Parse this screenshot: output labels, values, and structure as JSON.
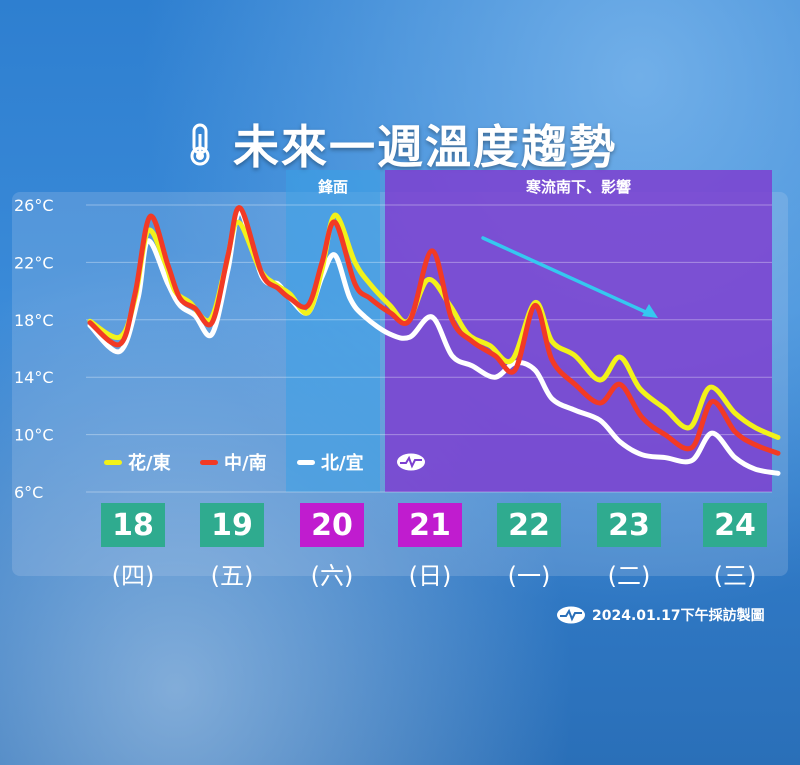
{
  "title": "未來一週溫度趨勢",
  "icons": {
    "title": "thermometer-icon",
    "source": "agency-logo-icon",
    "legend": "agency-logo-icon"
  },
  "colors": {
    "front_band": "#3ba0e6",
    "cold_band": "#7c3fd0",
    "weekend_box": "#c01ccf",
    "weekday_box": "#2fab8f",
    "arrow": "#35c8f0"
  },
  "chart_data": {
    "type": "line",
    "y_unit": "°C",
    "ylim": [
      6,
      26
    ],
    "yticks": [
      "26°C",
      "22°C",
      "18°C",
      "14°C",
      "10°C",
      "6°C"
    ],
    "grid": true,
    "legend_placement": "bottom-left",
    "bands": [
      {
        "label": "鋒面",
        "from_day": 2,
        "to_day": 3
      },
      {
        "label": "寒流南下、影響",
        "from_day": 3,
        "to_day": 7
      }
    ],
    "days": [
      {
        "date": "18",
        "weekday": "(四)",
        "weekend": false
      },
      {
        "date": "19",
        "weekday": "(五)",
        "weekend": false
      },
      {
        "date": "20",
        "weekday": "(六)",
        "weekend": true
      },
      {
        "date": "21",
        "weekday": "(日)",
        "weekend": true
      },
      {
        "date": "22",
        "weekday": "(一)",
        "weekend": false
      },
      {
        "date": "23",
        "weekday": "(二)",
        "weekend": false
      },
      {
        "date": "24",
        "weekday": "(三)",
        "weekend": false
      }
    ],
    "series": [
      {
        "name": "花/東",
        "color": "#f2f21a",
        "points": [
          [
            0.0,
            17.9
          ],
          [
            0.3,
            16.8
          ],
          [
            0.45,
            19.5
          ],
          [
            0.58,
            24.2
          ],
          [
            0.75,
            22.0
          ],
          [
            0.85,
            20.0
          ],
          [
            1.0,
            19.2
          ],
          [
            1.2,
            18.0
          ],
          [
            1.35,
            21.5
          ],
          [
            1.48,
            24.8
          ],
          [
            1.7,
            21.5
          ],
          [
            1.85,
            20.5
          ],
          [
            2.0,
            19.8
          ],
          [
            2.18,
            18.5
          ],
          [
            2.32,
            21.5
          ],
          [
            2.45,
            25.3
          ],
          [
            2.65,
            22.0
          ],
          [
            2.8,
            20.5
          ],
          [
            3.0,
            19.0
          ],
          [
            3.18,
            17.9
          ],
          [
            3.38,
            20.8
          ],
          [
            3.6,
            19.0
          ],
          [
            3.78,
            17.0
          ],
          [
            4.0,
            16.2
          ],
          [
            4.22,
            15.2
          ],
          [
            4.45,
            19.2
          ],
          [
            4.62,
            16.5
          ],
          [
            4.85,
            15.5
          ],
          [
            5.1,
            13.8
          ],
          [
            5.3,
            15.4
          ],
          [
            5.5,
            13.2
          ],
          [
            5.75,
            11.8
          ],
          [
            6.0,
            10.5
          ],
          [
            6.2,
            13.3
          ],
          [
            6.45,
            11.5
          ],
          [
            6.65,
            10.5
          ],
          [
            6.88,
            9.8
          ]
        ]
      },
      {
        "name": "中/南",
        "color": "#f23a25",
        "points": [
          [
            0.0,
            17.8
          ],
          [
            0.3,
            16.3
          ],
          [
            0.45,
            19.8
          ],
          [
            0.6,
            25.2
          ],
          [
            0.78,
            21.8
          ],
          [
            0.9,
            19.5
          ],
          [
            1.05,
            18.8
          ],
          [
            1.22,
            17.8
          ],
          [
            1.38,
            22.5
          ],
          [
            1.5,
            25.8
          ],
          [
            1.72,
            21.2
          ],
          [
            1.88,
            20.2
          ],
          [
            2.0,
            19.5
          ],
          [
            2.18,
            19.0
          ],
          [
            2.32,
            22.0
          ],
          [
            2.45,
            24.8
          ],
          [
            2.65,
            20.5
          ],
          [
            2.8,
            19.5
          ],
          [
            3.0,
            18.5
          ],
          [
            3.2,
            18.0
          ],
          [
            3.42,
            22.8
          ],
          [
            3.62,
            18.0
          ],
          [
            3.82,
            16.5
          ],
          [
            4.05,
            15.5
          ],
          [
            4.25,
            14.5
          ],
          [
            4.45,
            19.0
          ],
          [
            4.62,
            15.2
          ],
          [
            4.85,
            13.5
          ],
          [
            5.1,
            12.2
          ],
          [
            5.3,
            13.5
          ],
          [
            5.52,
            11.2
          ],
          [
            5.75,
            10.0
          ],
          [
            6.02,
            9.1
          ],
          [
            6.22,
            12.3
          ],
          [
            6.45,
            10.2
          ],
          [
            6.65,
            9.3
          ],
          [
            6.88,
            8.7
          ]
        ]
      },
      {
        "name": "北/宜",
        "color": "#ffffff",
        "points": [
          [
            0.0,
            17.6
          ],
          [
            0.3,
            15.8
          ],
          [
            0.48,
            19.5
          ],
          [
            0.58,
            23.5
          ],
          [
            0.78,
            20.5
          ],
          [
            0.9,
            19.0
          ],
          [
            1.05,
            18.3
          ],
          [
            1.22,
            17.0
          ],
          [
            1.38,
            21.5
          ],
          [
            1.5,
            25.5
          ],
          [
            1.72,
            21.0
          ],
          [
            1.88,
            20.5
          ],
          [
            2.0,
            19.5
          ],
          [
            2.18,
            18.5
          ],
          [
            2.32,
            21.0
          ],
          [
            2.45,
            22.5
          ],
          [
            2.6,
            19.5
          ],
          [
            2.75,
            18.2
          ],
          [
            3.0,
            17.0
          ],
          [
            3.2,
            16.8
          ],
          [
            3.42,
            18.2
          ],
          [
            3.62,
            15.5
          ],
          [
            3.82,
            14.8
          ],
          [
            4.05,
            14.0
          ],
          [
            4.25,
            15.0
          ],
          [
            4.45,
            14.5
          ],
          [
            4.62,
            12.5
          ],
          [
            4.85,
            11.7
          ],
          [
            5.1,
            11.0
          ],
          [
            5.3,
            9.5
          ],
          [
            5.52,
            8.6
          ],
          [
            5.75,
            8.4
          ],
          [
            6.02,
            8.2
          ],
          [
            6.22,
            10.1
          ],
          [
            6.45,
            8.4
          ],
          [
            6.65,
            7.6
          ],
          [
            6.88,
            7.3
          ]
        ]
      }
    ]
  },
  "source_text": "2024.01.17下午採訪製圖"
}
